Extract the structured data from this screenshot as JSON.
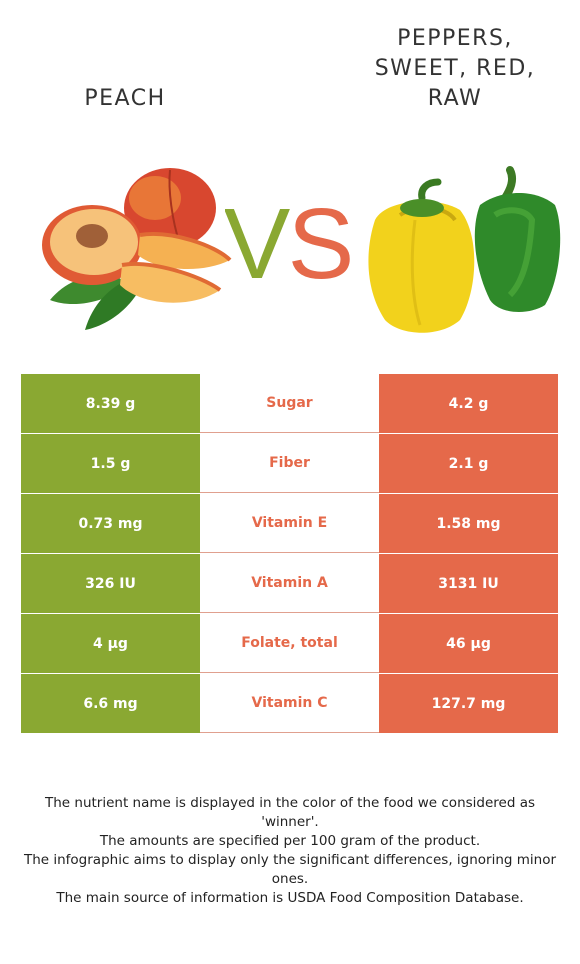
{
  "left_food": {
    "name": "PEACH",
    "color": "#8aa832"
  },
  "right_food": {
    "name": "PEPPERS, SWEET, RED, RAW",
    "color": "#e5694a"
  },
  "vs": {
    "v": "V",
    "s": "S"
  },
  "rows": [
    {
      "left": "8.39 g",
      "nutrient": "Sugar",
      "right": "4.2 g"
    },
    {
      "left": "1.5 g",
      "nutrient": "Fiber",
      "right": "2.1 g"
    },
    {
      "left": "0.73 mg",
      "nutrient": "Vitamin E",
      "right": "1.58 mg"
    },
    {
      "left": "326 IU",
      "nutrient": "Vitamin A",
      "right": "3131 IU"
    },
    {
      "left": "4 µg",
      "nutrient": "Folate, total",
      "right": "46 µg"
    },
    {
      "left": "6.6 mg",
      "nutrient": "Vitamin C",
      "right": "127.7 mg"
    }
  ],
  "notes": [
    "The nutrient name is displayed in the color of the food we considered as 'winner'.",
    "The amounts are specified per 100 gram of the product.",
    "The infographic aims to display only the significant differences, ignoring minor ones.",
    "The main source of information is USDA Food Composition Database."
  ]
}
